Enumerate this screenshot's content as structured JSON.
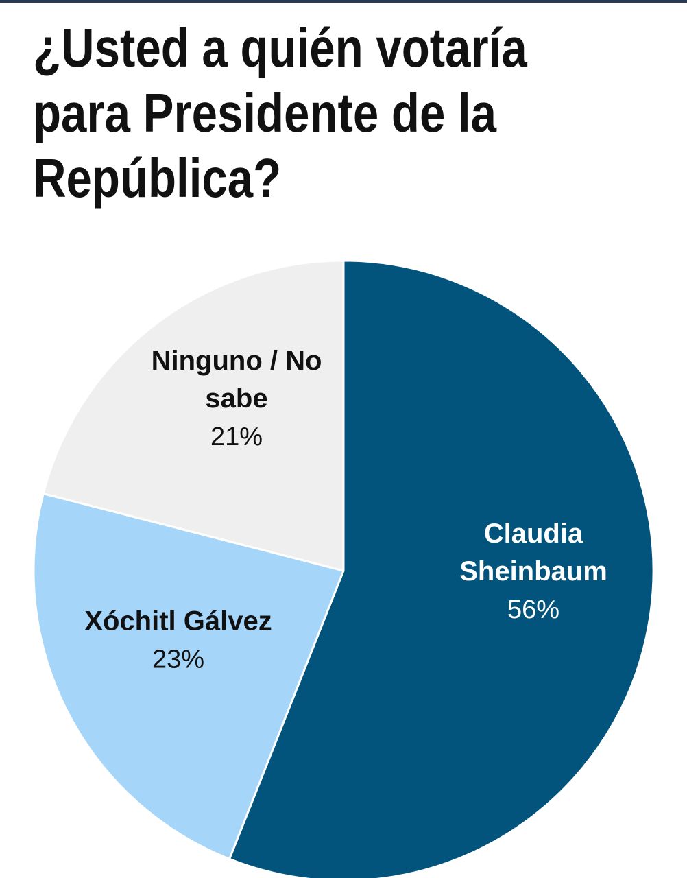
{
  "chart_data": {
    "type": "pie",
    "title_lines": [
      "¿Usted a quién votaría",
      "para Presidente de la",
      "República?"
    ],
    "slices": [
      {
        "name_lines": [
          "Claudia",
          "Sheinbaum"
        ],
        "value": 56,
        "label": "56%",
        "color": "#03547c",
        "text_color": "#ffffff"
      },
      {
        "name_lines": [
          "Xóchitl Gálvez"
        ],
        "value": 23,
        "label": "23%",
        "color": "#a5d6f9",
        "text_color": "#111111"
      },
      {
        "name_lines": [
          "Ninguno / No",
          "sabe"
        ],
        "value": 21,
        "label": "21%",
        "color": "#efefef",
        "text_color": "#111111"
      }
    ],
    "start_angle": "12 o'clock",
    "direction": "clockwise",
    "legend": "none"
  }
}
